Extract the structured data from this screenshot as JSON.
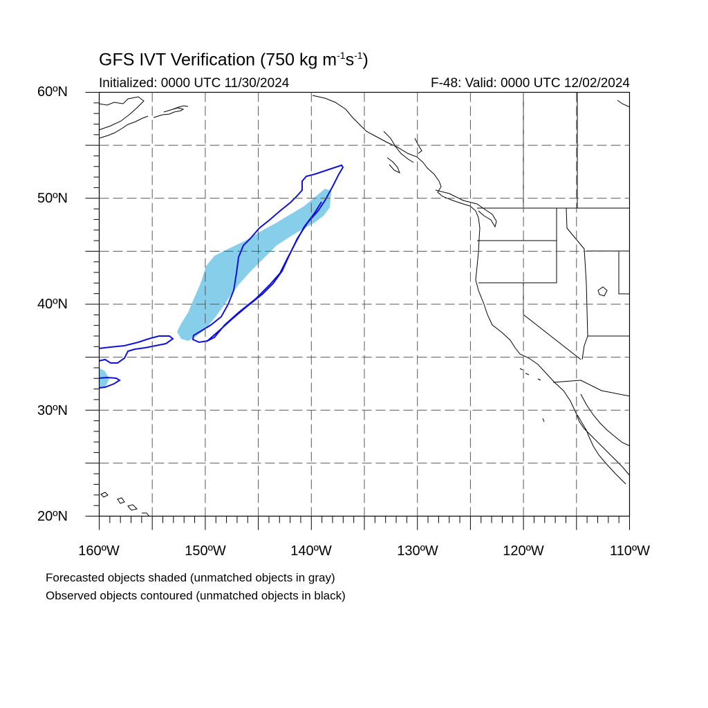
{
  "header": {
    "title_main": "GFS IVT Verification (750 kg m",
    "title_exp1": "-1",
    "title_mid": "s",
    "title_exp2": "-1",
    "title_end": ")",
    "initialized": "Initialized: 0000 UTC 11/30/2024",
    "valid": "F-48: Valid: 0000 UTC 12/02/2024"
  },
  "axes": {
    "lat_labels": [
      "60ºN",
      "50ºN",
      "40ºN",
      "30ºN",
      "20ºN"
    ],
    "lon_labels": [
      "160ºW",
      "150ºW",
      "140ºW",
      "130ºW",
      "120ºW",
      "110ºW"
    ],
    "lon_range": [
      -160,
      -110
    ],
    "lat_range": [
      20,
      60
    ],
    "gridlines": "dashed, every 5 degrees"
  },
  "legend": {
    "line1": "Forecasted objects shaded (unmatched objects in gray)",
    "line2": "Observed objects contoured (unmatched objects in black)"
  },
  "colors": {
    "forecast_fill": "#87ceeb",
    "observed_contour": "#1010dd",
    "coastline": "#000000",
    "grid": "#555555"
  }
}
